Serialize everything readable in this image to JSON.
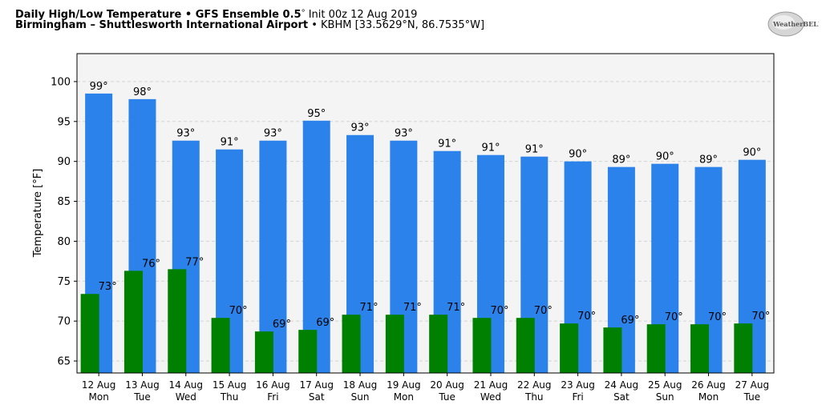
{
  "header": {
    "line1_bold": "Daily High/Low Temperature • GFS Ensemble 0.5",
    "line1_deg": "°",
    "line1_rest": " Init 00z 12 Aug 2019",
    "line2_bold": "Birmingham – Shuttlesworth International Airport",
    "line2_rest": " • KBHM [33.5629°N, 86.7535°W]"
  },
  "logo": {
    "text": "WeatherBELL"
  },
  "chart_data": {
    "type": "bar",
    "title": "Daily High/Low Temperature • GFS Ensemble 0.5° Init 00z 12 Aug 2019",
    "ylabel": "Temperature [°F]",
    "ylim": [
      63.5,
      103.5
    ],
    "yticks": [
      65,
      70,
      75,
      80,
      85,
      90,
      95,
      100
    ],
    "grid": true,
    "categories": [
      {
        "date": "12 Aug",
        "day": "Mon"
      },
      {
        "date": "13 Aug",
        "day": "Tue"
      },
      {
        "date": "14 Aug",
        "day": "Wed"
      },
      {
        "date": "15 Aug",
        "day": "Thu"
      },
      {
        "date": "16 Aug",
        "day": "Fri"
      },
      {
        "date": "17 Aug",
        "day": "Sat"
      },
      {
        "date": "18 Aug",
        "day": "Sun"
      },
      {
        "date": "19 Aug",
        "day": "Mon"
      },
      {
        "date": "20 Aug",
        "day": "Tue"
      },
      {
        "date": "21 Aug",
        "day": "Wed"
      },
      {
        "date": "22 Aug",
        "day": "Thu"
      },
      {
        "date": "23 Aug",
        "day": "Fri"
      },
      {
        "date": "24 Aug",
        "day": "Sat"
      },
      {
        "date": "25 Aug",
        "day": "Sun"
      },
      {
        "date": "26 Aug",
        "day": "Mon"
      },
      {
        "date": "27 Aug",
        "day": "Tue"
      }
    ],
    "series": [
      {
        "color": "#2b82ea",
        "values": [
          98.5,
          97.8,
          92.6,
          91.5,
          92.6,
          95.1,
          93.3,
          92.6,
          91.3,
          90.8,
          90.6,
          90.0,
          89.3,
          89.7,
          89.3,
          90.2
        ],
        "labels": [
          "99°",
          "98°",
          "93°",
          "91°",
          "93°",
          "95°",
          "93°",
          "93°",
          "91°",
          "91°",
          "91°",
          "90°",
          "89°",
          "90°",
          "89°",
          "90°"
        ]
      },
      {
        "color": "#008000",
        "values": [
          73.4,
          76.3,
          76.5,
          70.4,
          68.7,
          68.9,
          70.8,
          70.8,
          70.8,
          70.4,
          70.4,
          69.7,
          69.2,
          69.6,
          69.6,
          69.7
        ],
        "labels": [
          "73°",
          "76°",
          "77°",
          "70°",
          "69°",
          "69°",
          "71°",
          "71°",
          "71°",
          "70°",
          "70°",
          "70°",
          "69°",
          "70°",
          "70°",
          "70°"
        ]
      }
    ]
  }
}
